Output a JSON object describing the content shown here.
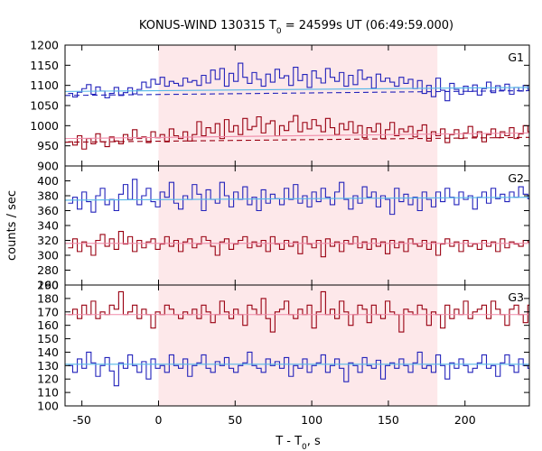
{
  "chart_data": {
    "type": "line",
    "title": {
      "prefix": "KONUS-WIND 130315 T",
      "subscript": "0",
      "suffix": " = 24599s UT (06:49:59.000)"
    },
    "xlabel": {
      "prefix": "T - T",
      "subscript": "0",
      "suffix": ", s"
    },
    "ylabel": "counts / sec",
    "xlim": [
      -61,
      242
    ],
    "xticks": [
      -50,
      0,
      50,
      100,
      150,
      200
    ],
    "shaded_interval": [
      0,
      182
    ],
    "colors": {
      "blue": "#2222bb",
      "red": "#990011",
      "cyan": "#55b8e8",
      "pink": "#f08aa8",
      "shade": "#fde8ea"
    },
    "panels": [
      {
        "label": "G1",
        "ylim": [
          900,
          1200
        ],
        "yticks": [
          900,
          950,
          1000,
          1050,
          1100,
          1150,
          1200
        ],
        "series": [
          {
            "color": "blue",
            "x_start": -59,
            "step": 3,
            "values": [
              1080,
              1071,
              1083,
              1092,
              1102,
              1078,
              1096,
              1086,
              1069,
              1080,
              1095,
              1075,
              1082,
              1094,
              1079,
              1090,
              1108,
              1095,
              1115,
              1103,
              1120,
              1098,
              1110,
              1105,
              1099,
              1118,
              1108,
              1112,
              1100,
              1125,
              1106,
              1138,
              1115,
              1142,
              1098,
              1130,
              1110,
              1155,
              1120,
              1105,
              1132,
              1115,
              1098,
              1128,
              1108,
              1140,
              1118,
              1124,
              1100,
              1145,
              1112,
              1127,
              1095,
              1136,
              1118,
              1106,
              1142,
              1120,
              1110,
              1132,
              1098,
              1125,
              1102,
              1138,
              1115,
              1120,
              1093,
              1128,
              1110,
              1118,
              1108,
              1098,
              1120,
              1105,
              1115,
              1092,
              1112,
              1080,
              1100,
              1072,
              1118,
              1088,
              1062,
              1105,
              1090,
              1078,
              1098,
              1085,
              1101,
              1076,
              1092,
              1108,
              1082,
              1099,
              1088,
              1103,
              1078,
              1095,
              1086,
              1100,
              1090
            ]
          },
          {
            "color": "red",
            "x_start": -59,
            "step": 3,
            "values": [
              960,
              952,
              975,
              942,
              968,
              955,
              980,
              960,
              948,
              972,
              962,
              955,
              978,
              965,
              990,
              968,
              972,
              958,
              985,
              970,
              978,
              960,
              992,
              975,
              968,
              985,
              962,
              978,
              1010,
              975,
              995,
              982,
              1005,
              968,
              1015,
              985,
              1000,
              978,
              1018,
              990,
              998,
              1022,
              982,
              1005,
              1012,
              975,
              1000,
              988,
              1010,
              1025,
              985,
              1008,
              992,
              1015,
              1000,
              985,
              1018,
              995,
              978,
              1005,
              990,
              1010,
              982,
              1000,
              970,
              995,
              985,
              1005,
              968,
              990,
              1008,
              975,
              992,
              985,
              998,
              972,
              988,
              1002,
              962,
              985,
              975,
              992,
              958,
              978,
              990,
              968,
              982,
              998,
              972,
              985,
              960,
              978,
              992,
              970,
              985,
              975,
              995,
              968,
              980,
              1000,
              985
            ]
          },
          {
            "color": "blue",
            "dashed": true,
            "x": [
              -61,
              242
            ],
            "y": [
              1075,
              1087
            ]
          },
          {
            "color": "cyan",
            "x": [
              -61,
              242
            ],
            "y": [
              1085,
              1095
            ]
          },
          {
            "color": "red",
            "dashed": true,
            "x": [
              -61,
              242
            ],
            "y": [
              959,
              971
            ]
          },
          {
            "color": "pink",
            "x": [
              -61,
              242
            ],
            "y": [
              968,
              982
            ]
          }
        ]
      },
      {
        "label": "G2",
        "ylim": [
          260,
          420
        ],
        "yticks": [
          260,
          280,
          300,
          320,
          340,
          360,
          380,
          400
        ],
        "series": [
          {
            "color": "blue",
            "x_start": -59,
            "step": 3,
            "values": [
              370,
              378,
              362,
              385,
              372,
              358,
              380,
              390,
              368,
              375,
              360,
              382,
              395,
              375,
              402,
              368,
              380,
              390,
              372,
              365,
              385,
              378,
              398,
              370,
              362,
              380,
              375,
              395,
              382,
              360,
              388,
              375,
              370,
              398,
              380,
              365,
              385,
              375,
              392,
              368,
              378,
              360,
              388,
              370,
              382,
              376,
              368,
              390,
              375,
              395,
              370,
              380,
              365,
              385,
              372,
              390,
              378,
              368,
              385,
              398,
              375,
              362,
              380,
              370,
              392,
              378,
              385,
              365,
              380,
              375,
              355,
              390,
              372,
              382,
              368,
              378,
              360,
              385,
              375,
              365,
              385,
              372,
              390,
              378,
              368,
              385,
              375,
              380,
              362,
              378,
              385,
              370,
              390,
              376,
              382,
              372,
              385,
              378,
              392,
              382,
              376
            ]
          },
          {
            "color": "red",
            "x_start": -59,
            "step": 3,
            "values": [
              310,
              322,
              305,
              318,
              312,
              300,
              320,
              328,
              312,
              322,
              308,
              332,
              315,
              325,
              305,
              320,
              310,
              318,
              322,
              308,
              315,
              325,
              312,
              320,
              305,
              318,
              322,
              310,
              315,
              325,
              320,
              312,
              300,
              318,
              322,
              308,
              315,
              320,
              325,
              310,
              318,
              312,
              320,
              305,
              325,
              315,
              308,
              320,
              312,
              318,
              302,
              325,
              315,
              310,
              320,
              298,
              322,
              312,
              318,
              305,
              320,
              315,
              325,
              310,
              318,
              308,
              322,
              312,
              318,
              302,
              320,
              310,
              318,
              305,
              322,
              315,
              312,
              320,
              308,
              318,
              300,
              315,
              322,
              312,
              318,
              305,
              320,
              312,
              315,
              308,
              320,
              312,
              318,
              305,
              322,
              310,
              318,
              315,
              312,
              320,
              318
            ]
          },
          {
            "color": "cyan",
            "x": [
              -61,
              242
            ],
            "y": [
              374,
              378
            ]
          },
          {
            "color": "pink",
            "x": [
              -61,
              242
            ],
            "y": [
              316,
              316
            ]
          }
        ]
      },
      {
        "label": "G3",
        "ylim": [
          100,
          190
        ],
        "yticks": [
          100,
          110,
          120,
          130,
          140,
          150,
          160,
          170,
          180,
          190
        ],
        "series": [
          {
            "color": "red",
            "x_start": -59,
            "step": 3,
            "values": [
              168,
              172,
              165,
              175,
              168,
              178,
              165,
              170,
              168,
              175,
              172,
              185,
              168,
              170,
              175,
              165,
              172,
              168,
              158,
              170,
              168,
              175,
              172,
              168,
              165,
              170,
              168,
              172,
              165,
              175,
              170,
              162,
              168,
              178,
              170,
              165,
              172,
              168,
              160,
              175,
              172,
              168,
              180,
              165,
              155,
              170,
              172,
              178,
              168,
              165,
              172,
              168,
              175,
              158,
              170,
              185,
              168,
              172,
              165,
              178,
              170,
              160,
              168,
              175,
              172,
              162,
              175,
              168,
              165,
              178,
              170,
              168,
              155,
              172,
              170,
              168,
              175,
              172,
              160,
              170,
              168,
              158,
              175,
              165,
              172,
              168,
              178,
              165,
              170,
              172,
              175,
              165,
              178,
              172,
              168,
              160,
              172,
              175,
              168,
              162,
              175
            ]
          },
          {
            "color": "blue",
            "x_start": -59,
            "step": 3,
            "values": [
              130,
              125,
              135,
              128,
              140,
              132,
              122,
              130,
              136,
              126,
              115,
              132,
              128,
              138,
              130,
              125,
              133,
              120,
              135,
              128,
              130,
              125,
              138,
              130,
              128,
              135,
              122,
              130,
              132,
              138,
              128,
              125,
              133,
              130,
              136,
              128,
              125,
              130,
              132,
              140,
              130,
              128,
              125,
              135,
              130,
              133,
              128,
              136,
              122,
              130,
              128,
              135,
              125,
              130,
              132,
              138,
              125,
              130,
              135,
              128,
              118,
              132,
              130,
              125,
              136,
              130,
              128,
              134,
              120,
              130,
              132,
              128,
              135,
              130,
              125,
              132,
              140,
              128,
              130,
              125,
              138,
              130,
              120,
              132,
              128,
              135,
              130,
              125,
              128,
              132,
              138,
              128,
              130,
              122,
              132,
              138,
              130,
              125,
              135,
              130,
              128
            ]
          },
          {
            "color": "pink",
            "x": [
              -61,
              242
            ],
            "y": [
              168,
              168
            ]
          },
          {
            "color": "cyan",
            "x": [
              -61,
              242
            ],
            "y": [
              131,
              131
            ]
          }
        ]
      }
    ]
  }
}
